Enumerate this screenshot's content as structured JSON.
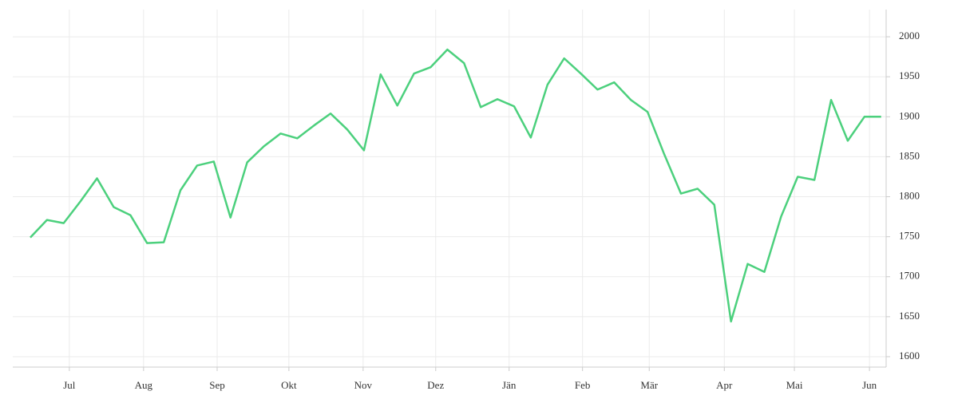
{
  "chart_data": {
    "type": "line",
    "x": [
      0,
      1,
      2,
      3,
      4,
      5,
      6,
      7,
      8,
      9,
      10,
      11,
      12,
      13,
      14,
      15,
      16,
      17,
      18,
      19,
      20,
      21,
      22,
      23,
      24,
      25,
      26,
      27,
      28,
      29,
      30,
      31,
      32,
      33,
      34,
      35,
      36,
      37,
      38,
      39,
      40,
      41,
      42,
      43,
      44,
      45,
      46,
      47,
      48,
      49,
      50,
      51
    ],
    "series": [
      {
        "color": "#4cd07d",
        "values": [
          1749,
          1771,
          1767,
          1794,
          1823,
          1787,
          1777,
          1742,
          1743,
          1808,
          1839,
          1844,
          1774,
          1843,
          1863,
          1879,
          1873,
          1889,
          1904,
          1884,
          1858,
          1953,
          1914,
          1954,
          1962,
          1984,
          1967,
          1912,
          1922,
          1913,
          1874,
          1940,
          1973,
          1954,
          1934,
          1943,
          1921,
          1906,
          1853,
          1804,
          1810,
          1790,
          1644,
          1716,
          1706,
          1775,
          1825,
          1821,
          1921,
          1870,
          1900,
          1900
        ]
      }
    ],
    "xlim": [
      -1.05,
      51.3
    ],
    "xticks": [
      {
        "value": 2.34,
        "label": "Jul"
      },
      {
        "value": 6.79,
        "label": "Aug"
      },
      {
        "value": 11.2,
        "label": "Sep"
      },
      {
        "value": 15.5,
        "label": "Okt"
      },
      {
        "value": 19.95,
        "label": "Nov"
      },
      {
        "value": 24.3,
        "label": "Dez"
      },
      {
        "value": 28.7,
        "label": "Jän"
      },
      {
        "value": 33.1,
        "label": "Feb"
      },
      {
        "value": 37.1,
        "label": "Mär"
      },
      {
        "value": 41.6,
        "label": "Apr"
      },
      {
        "value": 45.8,
        "label": "Mai"
      },
      {
        "value": 50.3,
        "label": "Jun"
      }
    ],
    "ylim": [
      1587,
      2034
    ],
    "yticks": [
      1600,
      1650,
      1700,
      1750,
      1800,
      1850,
      1900,
      1950,
      2000
    ],
    "grid": true
  }
}
